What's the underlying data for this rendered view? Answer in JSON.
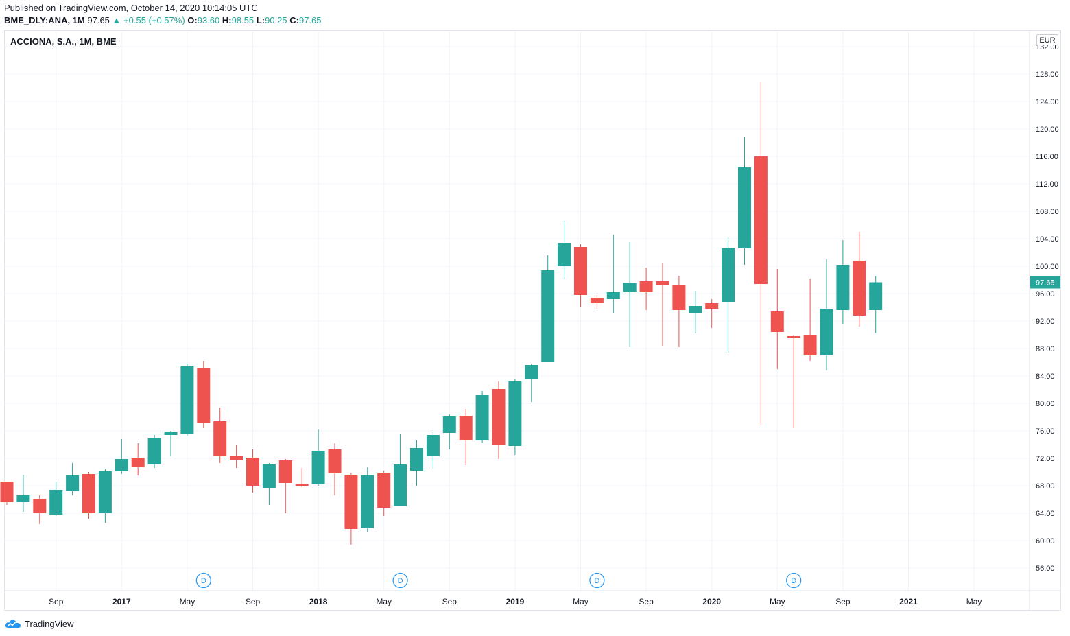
{
  "header": {
    "published": "Published on TradingView.com, October 14, 2020 10:14:05 UTC",
    "symbol": "BME_DLY:ANA, 1M",
    "last": "97.65",
    "change": "▲ +0.55 (+0.57%)",
    "o_label": "O:",
    "o_value": "93.60",
    "h_label": "H:",
    "h_value": "98.55",
    "l_label": "L:",
    "l_value": "90.25",
    "c_label": "C:",
    "c_value": "97.65"
  },
  "chart_title": "ACCIONA, S.A., 1M, BME",
  "currency": "EUR",
  "footer": {
    "brand": "TradingView",
    "logo_icon": "tradingview-cloud-icon"
  },
  "colors": {
    "up": "#26a69a",
    "down": "#ef5350",
    "grid": "#f0f3fa",
    "axis_text": "#131722",
    "dividend": "#2196f3"
  },
  "chart_data": {
    "type": "candlestick",
    "interval": "1M",
    "ylim": [
      52,
      133
    ],
    "y_ticks": [
      56,
      60,
      64,
      68,
      72,
      76,
      80,
      84,
      88,
      92,
      96,
      100,
      104,
      108,
      112,
      116,
      120,
      124,
      128,
      132
    ],
    "last_price_label": "97.65",
    "x_ticks": [
      {
        "label": "Sep",
        "idx": 3,
        "bold": false
      },
      {
        "label": "2017",
        "idx": 7,
        "bold": true
      },
      {
        "label": "May",
        "idx": 11,
        "bold": false
      },
      {
        "label": "Sep",
        "idx": 15,
        "bold": false
      },
      {
        "label": "2018",
        "idx": 19,
        "bold": true
      },
      {
        "label": "May",
        "idx": 23,
        "bold": false
      },
      {
        "label": "Sep",
        "idx": 27,
        "bold": false
      },
      {
        "label": "2019",
        "idx": 31,
        "bold": true
      },
      {
        "label": "May",
        "idx": 35,
        "bold": false
      },
      {
        "label": "Sep",
        "idx": 39,
        "bold": false
      },
      {
        "label": "2020",
        "idx": 43,
        "bold": true
      },
      {
        "label": "May",
        "idx": 47,
        "bold": false
      },
      {
        "label": "Sep",
        "idx": 51,
        "bold": false
      },
      {
        "label": "2021",
        "idx": 55,
        "bold": true
      },
      {
        "label": "May",
        "idx": 59,
        "bold": false
      }
    ],
    "dividends": [
      {
        "label": "D",
        "idx": 12
      },
      {
        "label": "D",
        "idx": 24
      },
      {
        "label": "D",
        "idx": 36
      },
      {
        "label": "D",
        "idx": 48
      }
    ],
    "candles": [
      {
        "date": "2016-06",
        "o": 68.6,
        "h": 68.6,
        "l": 65.2,
        "c": 65.6
      },
      {
        "date": "2016-07",
        "o": 65.6,
        "h": 69.6,
        "l": 64.2,
        "c": 66.6
      },
      {
        "date": "2016-08",
        "o": 66.1,
        "h": 66.6,
        "l": 62.4,
        "c": 64.0
      },
      {
        "date": "2016-09",
        "o": 63.8,
        "h": 68.6,
        "l": 63.6,
        "c": 67.4
      },
      {
        "date": "2016-10",
        "o": 67.2,
        "h": 71.3,
        "l": 66.6,
        "c": 69.5
      },
      {
        "date": "2016-11",
        "o": 69.7,
        "h": 70.0,
        "l": 63.2,
        "c": 64.0
      },
      {
        "date": "2016-12",
        "o": 64.0,
        "h": 70.4,
        "l": 62.6,
        "c": 70.1
      },
      {
        "date": "2017-01",
        "o": 70.1,
        "h": 74.8,
        "l": 69.7,
        "c": 71.9
      },
      {
        "date": "2017-02",
        "o": 72.1,
        "h": 74.2,
        "l": 69.5,
        "c": 70.7
      },
      {
        "date": "2017-03",
        "o": 71.1,
        "h": 75.4,
        "l": 70.6,
        "c": 75.0
      },
      {
        "date": "2017-04",
        "o": 75.4,
        "h": 76.0,
        "l": 72.3,
        "c": 75.8
      },
      {
        "date": "2017-05",
        "o": 75.6,
        "h": 85.8,
        "l": 75.3,
        "c": 85.4
      },
      {
        "date": "2017-06",
        "o": 85.2,
        "h": 86.2,
        "l": 76.4,
        "c": 77.2
      },
      {
        "date": "2017-07",
        "o": 77.4,
        "h": 79.4,
        "l": 71.3,
        "c": 72.3
      },
      {
        "date": "2017-08",
        "o": 72.3,
        "h": 74.0,
        "l": 70.6,
        "c": 71.7
      },
      {
        "date": "2017-09",
        "o": 72.1,
        "h": 73.3,
        "l": 67.0,
        "c": 68.0
      },
      {
        "date": "2017-10",
        "o": 67.6,
        "h": 71.3,
        "l": 65.2,
        "c": 71.1
      },
      {
        "date": "2017-11",
        "o": 71.7,
        "h": 71.9,
        "l": 64.0,
        "c": 68.4
      },
      {
        "date": "2017-12",
        "o": 68.2,
        "h": 70.6,
        "l": 67.8,
        "c": 68.0
      },
      {
        "date": "2018-01",
        "o": 68.2,
        "h": 76.2,
        "l": 68.0,
        "c": 73.1
      },
      {
        "date": "2018-02",
        "o": 73.3,
        "h": 74.2,
        "l": 66.6,
        "c": 69.8
      },
      {
        "date": "2018-03",
        "o": 69.6,
        "h": 69.9,
        "l": 59.4,
        "c": 61.7
      },
      {
        "date": "2018-04",
        "o": 61.8,
        "h": 70.7,
        "l": 61.2,
        "c": 69.5
      },
      {
        "date": "2018-05",
        "o": 69.9,
        "h": 70.2,
        "l": 63.6,
        "c": 64.8
      },
      {
        "date": "2018-06",
        "o": 65.0,
        "h": 75.6,
        "l": 65.0,
        "c": 71.1
      },
      {
        "date": "2018-07",
        "o": 70.2,
        "h": 74.6,
        "l": 68.0,
        "c": 73.5
      },
      {
        "date": "2018-08",
        "o": 72.3,
        "h": 75.8,
        "l": 70.5,
        "c": 75.4
      },
      {
        "date": "2018-09",
        "o": 75.7,
        "h": 78.4,
        "l": 73.3,
        "c": 78.1
      },
      {
        "date": "2018-10",
        "o": 78.2,
        "h": 79.2,
        "l": 71.0,
        "c": 74.6
      },
      {
        "date": "2018-11",
        "o": 74.6,
        "h": 81.8,
        "l": 74.2,
        "c": 81.2
      },
      {
        "date": "2018-12",
        "o": 82.1,
        "h": 83.2,
        "l": 71.9,
        "c": 74.0
      },
      {
        "date": "2019-01",
        "o": 73.8,
        "h": 83.6,
        "l": 72.5,
        "c": 83.2
      },
      {
        "date": "2019-02",
        "o": 83.6,
        "h": 85.8,
        "l": 80.2,
        "c": 85.6
      },
      {
        "date": "2019-03",
        "o": 86.0,
        "h": 101.6,
        "l": 86.0,
        "c": 99.4
      },
      {
        "date": "2019-04",
        "o": 100.0,
        "h": 106.6,
        "l": 98.2,
        "c": 103.4
      },
      {
        "date": "2019-05",
        "o": 102.8,
        "h": 103.2,
        "l": 94.0,
        "c": 95.8
      },
      {
        "date": "2019-06",
        "o": 95.4,
        "h": 95.8,
        "l": 93.8,
        "c": 94.6
      },
      {
        "date": "2019-07",
        "o": 95.2,
        "h": 104.6,
        "l": 93.2,
        "c": 96.2
      },
      {
        "date": "2019-08",
        "o": 96.3,
        "h": 103.6,
        "l": 88.2,
        "c": 97.6
      },
      {
        "date": "2019-09",
        "o": 97.8,
        "h": 99.8,
        "l": 93.6,
        "c": 96.2
      },
      {
        "date": "2019-10",
        "o": 97.8,
        "h": 100.4,
        "l": 88.4,
        "c": 97.2
      },
      {
        "date": "2019-11",
        "o": 97.2,
        "h": 98.6,
        "l": 88.2,
        "c": 93.6
      },
      {
        "date": "2019-12",
        "o": 93.2,
        "h": 96.4,
        "l": 90.2,
        "c": 94.2
      },
      {
        "date": "2020-01",
        "o": 94.6,
        "h": 95.2,
        "l": 91.0,
        "c": 93.8
      },
      {
        "date": "2020-02",
        "o": 94.8,
        "h": 104.2,
        "l": 87.4,
        "c": 102.6
      },
      {
        "date": "2020-03",
        "o": 102.6,
        "h": 118.8,
        "l": 100.2,
        "c": 114.4
      },
      {
        "date": "2020-04",
        "o": 116.0,
        "h": 126.8,
        "l": 76.8,
        "c": 97.4
      },
      {
        "date": "2020-05",
        "o": 93.4,
        "h": 99.6,
        "l": 85.0,
        "c": 90.4
      },
      {
        "date": "2020-06",
        "o": 89.8,
        "h": 90.0,
        "l": 76.4,
        "c": 89.6
      },
      {
        "date": "2020-07",
        "o": 90.0,
        "h": 98.2,
        "l": 86.2,
        "c": 87.0
      },
      {
        "date": "2020-08",
        "o": 87.0,
        "h": 101.0,
        "l": 84.8,
        "c": 93.8
      },
      {
        "date": "2020-09",
        "o": 93.6,
        "h": 103.8,
        "l": 91.6,
        "c": 100.2
      },
      {
        "date": "2020-10",
        "o": 100.8,
        "h": 105.0,
        "l": 91.2,
        "c": 92.8
      },
      {
        "date": "2020-11",
        "o": 93.6,
        "h": 98.55,
        "l": 90.25,
        "c": 97.65
      }
    ]
  }
}
